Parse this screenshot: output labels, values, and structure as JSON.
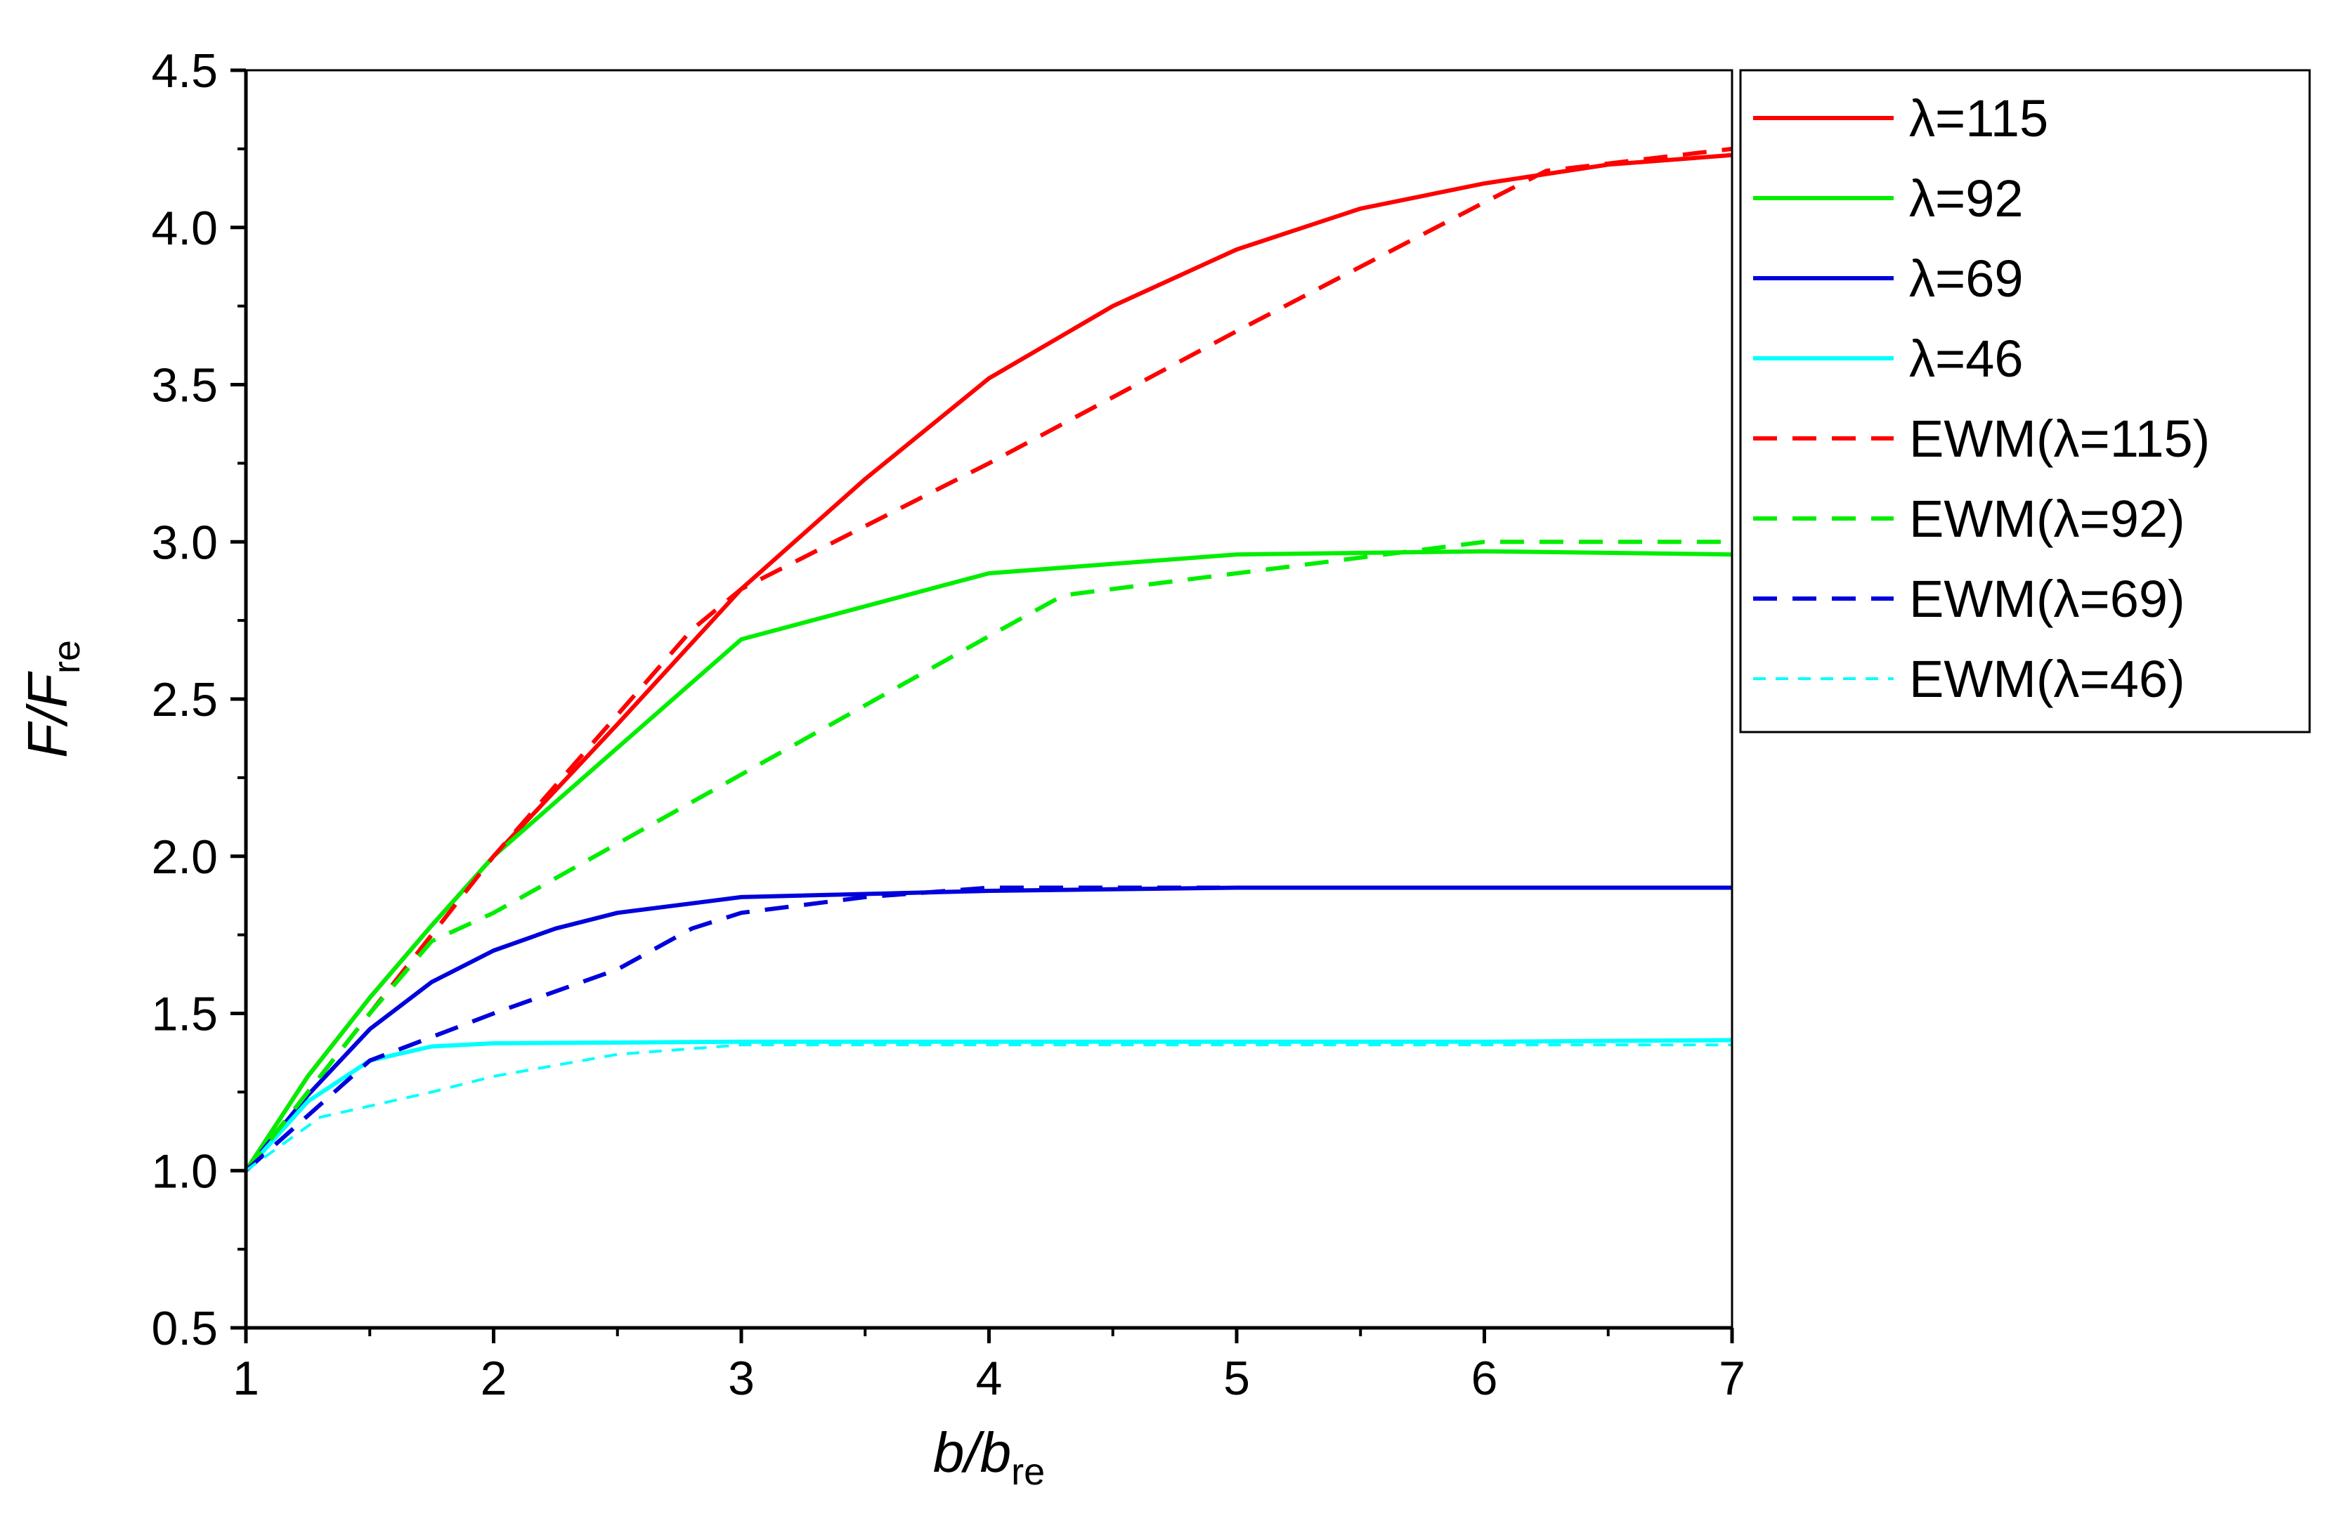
{
  "chart_data": {
    "type": "line",
    "xlabel": {
      "main": "b/b",
      "sub": "re"
    },
    "ylabel": {
      "main": "F/F",
      "sub": "re"
    },
    "xlim": [
      1,
      7
    ],
    "ylim": [
      0.5,
      4.5
    ],
    "xticks": [
      1,
      2,
      3,
      4,
      5,
      6,
      7
    ],
    "yticks": [
      "0.5",
      "1.0",
      "1.5",
      "2.0",
      "2.5",
      "3.0",
      "3.5",
      "4.0",
      "4.5"
    ],
    "grid": false,
    "legend_position": "outside-right-top",
    "series": [
      {
        "name": "λ=115",
        "color": "#ff0000",
        "style": "solid",
        "x": [
          1,
          1.25,
          1.5,
          1.75,
          2,
          2.5,
          3,
          3.5,
          4,
          4.5,
          5,
          5.5,
          6,
          6.5,
          7
        ],
        "y": [
          1.0,
          1.3,
          1.55,
          1.78,
          2.0,
          2.42,
          2.85,
          3.2,
          3.52,
          3.75,
          3.93,
          4.06,
          4.14,
          4.2,
          4.23
        ]
      },
      {
        "name": "λ=92",
        "color": "#00ee00",
        "style": "solid",
        "x": [
          1,
          1.25,
          1.5,
          1.75,
          2,
          3,
          4,
          5,
          6,
          7
        ],
        "y": [
          1.0,
          1.3,
          1.55,
          1.78,
          2.0,
          2.69,
          2.9,
          2.96,
          2.97,
          2.96
        ]
      },
      {
        "name": "λ=69",
        "color": "#0000dd",
        "style": "solid",
        "x": [
          1,
          1.25,
          1.5,
          1.75,
          2,
          2.25,
          2.5,
          3,
          4,
          5,
          6,
          7
        ],
        "y": [
          1.0,
          1.24,
          1.45,
          1.6,
          1.7,
          1.77,
          1.82,
          1.87,
          1.89,
          1.9,
          1.9,
          1.9
        ]
      },
      {
        "name": "λ=46",
        "color": "#00ffff",
        "style": "solid",
        "x": [
          1,
          1.25,
          1.5,
          1.75,
          2,
          3,
          4,
          5,
          6,
          7
        ],
        "y": [
          1.0,
          1.22,
          1.35,
          1.395,
          1.405,
          1.41,
          1.41,
          1.41,
          1.41,
          1.415
        ]
      },
      {
        "name": "EWM(λ=115)",
        "color": "#ff0000",
        "style": "dashed",
        "x": [
          1,
          1.5,
          2,
          2.5,
          2.8,
          3,
          4,
          5,
          6,
          6.25,
          7
        ],
        "y": [
          1.0,
          1.5,
          2.0,
          2.45,
          2.72,
          2.85,
          3.25,
          3.67,
          4.08,
          4.18,
          4.25
        ]
      },
      {
        "name": "EWM(λ=92)",
        "color": "#00ee00",
        "style": "dashed",
        "x": [
          1,
          1.5,
          1.75,
          2,
          3,
          4,
          4.3,
          5,
          6,
          7
        ],
        "y": [
          1.0,
          1.5,
          1.73,
          1.82,
          2.26,
          2.7,
          2.83,
          2.9,
          3.0,
          3.0
        ]
      },
      {
        "name": "EWM(λ=69)",
        "color": "#0000dd",
        "style": "dashed",
        "x": [
          1,
          1.5,
          2,
          2.5,
          2.8,
          3,
          3.5,
          4,
          5,
          6,
          7
        ],
        "y": [
          1.0,
          1.35,
          1.5,
          1.64,
          1.77,
          1.82,
          1.87,
          1.9,
          1.9,
          1.9,
          1.9
        ]
      },
      {
        "name": "EWM(λ=46)",
        "color": "#00ffff",
        "style": "dotted",
        "x": [
          1,
          1.3,
          1.75,
          2,
          2.5,
          3,
          4,
          5,
          6,
          7
        ],
        "y": [
          1.0,
          1.17,
          1.25,
          1.3,
          1.37,
          1.4,
          1.4,
          1.4,
          1.4,
          1.4
        ]
      }
    ]
  }
}
